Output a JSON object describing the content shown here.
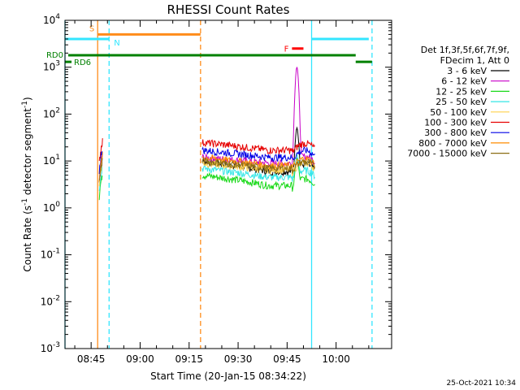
{
  "colors": {
    "axis": "#000000",
    "saa": "#ff8c1a",
    "night": "#33e6ff",
    "rd": "#008000",
    "flare": "#ff0000"
  },
  "chart_data": {
    "type": "line",
    "title": "RHESSI Count Rates",
    "xlabel": "Start Time (20-Jan-15 08:34:22)",
    "ylabel": "Count Rate (s-1 detector segment-1)",
    "ylabel_parts": {
      "pre": "Count Rate (s",
      "sup1": "-1",
      "mid": " detector segment",
      "sup2": "-1",
      "post": ")"
    },
    "yscale": "log",
    "xlim": [
      "08:37:00",
      "10:17:00"
    ],
    "ylim": [
      0.001,
      10000
    ],
    "x_ticks": [
      "08:45",
      "09:00",
      "09:15",
      "09:30",
      "09:45",
      "10:00"
    ],
    "y_ticks": [
      {
        "value": 0.001,
        "base": "10",
        "exp": "-3"
      },
      {
        "value": 0.01,
        "base": "10",
        "exp": "-2"
      },
      {
        "value": 0.1,
        "base": "10",
        "exp": "-1"
      },
      {
        "value": 1,
        "base": "10",
        "exp": "0"
      },
      {
        "value": 10,
        "base": "10",
        "exp": "1"
      },
      {
        "value": 100,
        "base": "10",
        "exp": "2"
      },
      {
        "value": 1000,
        "base": "10",
        "exp": "3"
      },
      {
        "value": 10000,
        "base": "10",
        "exp": "4"
      }
    ],
    "legend_header": [
      "Det 1f,3f,5f,6f,7f,9f,",
      "FDecim 1, Att 0"
    ],
    "legend_placement": "right",
    "series": [
      {
        "name": "3 - 6 keV",
        "color": "#000000",
        "level_early": 10,
        "level_late": 6
      },
      {
        "name": "6 - 12 keV",
        "color": "#c800c8",
        "level_early": 12,
        "level_late": 9
      },
      {
        "name": "12 - 25 keV",
        "color": "#19d919",
        "level_early": 5,
        "level_late": 3
      },
      {
        "name": "25 - 50 keV",
        "color": "#33e6e6",
        "level_early": 7,
        "level_late": 4.5
      },
      {
        "name": "50 - 100 keV",
        "color": "#ffd24d",
        "level_early": 9,
        "level_late": 6.5
      },
      {
        "name": "100 - 300 keV",
        "color": "#e60000",
        "level_early": 25,
        "level_late": 17
      },
      {
        "name": "300 - 800 keV",
        "color": "#0000e6",
        "level_early": 17,
        "level_late": 12
      },
      {
        "name": "800 - 7000 keV",
        "color": "#ff8c00",
        "level_early": 12,
        "level_late": 8
      },
      {
        "name": "7000 - 15000 keV",
        "color": "#8b6d14",
        "level_early": 10,
        "level_late": 7
      }
    ],
    "data_segments": [
      {
        "start": "08:47:30",
        "end": "08:48:30"
      },
      {
        "start": "09:19:00",
        "end": "09:53:30"
      }
    ],
    "flare_peak": {
      "time": "09:48:00",
      "value": 1000
    },
    "annotations": {
      "saa_label": "S",
      "night_label": "N",
      "flare_label": "F",
      "rd0_label": "RD0",
      "rd6_label": "RD6"
    },
    "vertical_lines": [
      {
        "time": "08:37:00",
        "kind": "night",
        "style": "solid"
      },
      {
        "time": "08:47:00",
        "kind": "saa",
        "style": "solid"
      },
      {
        "time": "08:50:30",
        "kind": "night",
        "style": "dashed"
      },
      {
        "time": "09:18:30",
        "kind": "saa",
        "style": "dashed"
      },
      {
        "time": "09:52:30",
        "kind": "night",
        "style": "solid"
      },
      {
        "time": "10:11:00",
        "kind": "night",
        "style": "dashed"
      }
    ],
    "bars": [
      {
        "kind": "night",
        "start": "08:37:00",
        "end": "08:50:30",
        "level": 4000
      },
      {
        "kind": "saa",
        "start": "08:47:00",
        "end": "09:18:30",
        "level": 5000
      },
      {
        "kind": "night",
        "start": "09:52:30",
        "end": "10:10:00",
        "level": 4000
      },
      {
        "kind": "flare",
        "start": "09:46:30",
        "end": "09:50:00",
        "level": 2500
      },
      {
        "kind": "rd",
        "start": "08:38:00",
        "end": "10:06:00",
        "level": 1800
      },
      {
        "kind": "rd",
        "start": "10:06:00",
        "end": "10:11:00",
        "level": 1300
      },
      {
        "kind": "rd",
        "start": "08:37:00",
        "end": "08:39:00",
        "level": 1300
      }
    ],
    "grid": false
  },
  "footer": {
    "timestamp": "25-Oct-2021 10:34"
  }
}
